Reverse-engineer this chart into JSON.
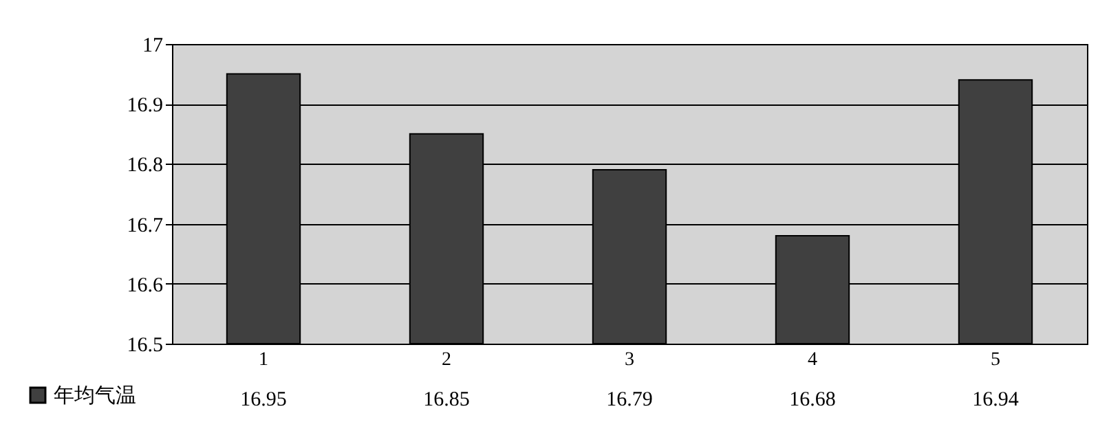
{
  "chart_data": {
    "type": "bar",
    "categories": [
      "1",
      "2",
      "3",
      "4",
      "5"
    ],
    "series": [
      {
        "name": "年均气温",
        "color": "#404040",
        "values": [
          16.95,
          16.85,
          16.79,
          16.68,
          16.94
        ]
      }
    ],
    "ylim": [
      16.5,
      17
    ],
    "yticks": [
      16.5,
      16.6,
      16.7,
      16.8,
      16.9,
      {
        "value": 17,
        "label": "17"
      }
    ],
    "grid": "y",
    "legend": "bottom left",
    "data_labels": true
  }
}
